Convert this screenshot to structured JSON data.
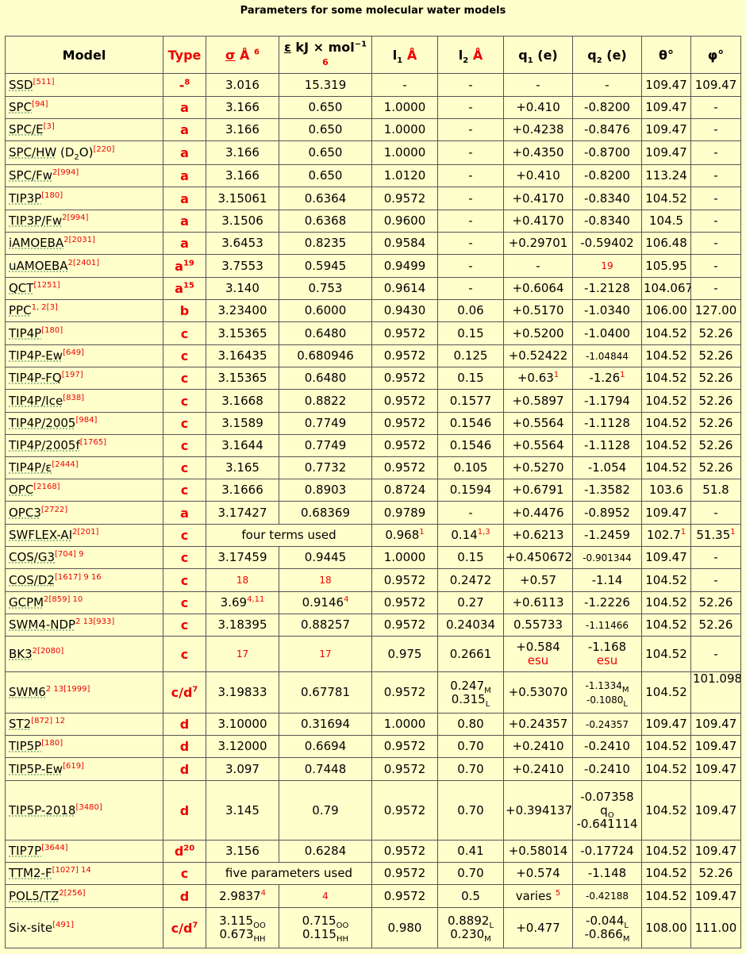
{
  "title": "Parameters for some molecular water models",
  "headers": {
    "model": "Model",
    "type": "Type",
    "sigma_sym": "σ",
    "sigma_unit": "Å",
    "sigma_ref": "6",
    "eps_sym": "ε",
    "eps_unit": "kJ × mol",
    "eps_exp": "−1",
    "eps_ref": "6",
    "l1": "l",
    "l1_sub": "1",
    "l1_unit": "Å",
    "l2": "l",
    "l2_sub": "2",
    "l2_unit": "Å",
    "q1": "q",
    "q1_sub": "1",
    "q1_unit": "(e)",
    "q2": "q",
    "q2_sub": "2",
    "q2_unit": "(e)",
    "theta": "θ°",
    "phi": "φ°"
  },
  "rows": [
    {
      "model": "SSD",
      "refs": "[511]",
      "type": "-",
      "type_ref": "8",
      "sigma": "3.016",
      "eps": "15.319",
      "l1": "-",
      "l2": "-",
      "q1": "-",
      "q2": "-",
      "theta": "109.47",
      "phi": "109.47"
    },
    {
      "model": "SPC",
      "refs": "[94]",
      "type": "a",
      "sigma": "3.166",
      "eps": "0.650",
      "l1": "1.0000",
      "l2": "-",
      "q1": "+0.410",
      "q2": "-0.8200",
      "theta": "109.47",
      "phi": "-"
    },
    {
      "model": "SPC/E",
      "refs": "[3]",
      "type": "a",
      "sigma": "3.166",
      "eps": "0.650",
      "l1": "1.0000",
      "l2": "-",
      "q1": "+0.4238",
      "q2": "-0.8476",
      "theta": "109.47",
      "phi": "-"
    },
    {
      "model": "SPC/HW",
      "suffix_pre": "(D",
      "suffix_sub": "2",
      "suffix_post": "O)",
      "refs": "[220]",
      "type": "a",
      "sigma": "3.166",
      "eps": "0.650",
      "l1": "1.0000",
      "l2": "-",
      "q1": "+0.4350",
      "q2": "-0.8700",
      "theta": "109.47",
      "phi": "-"
    },
    {
      "model": "SPC/Fw",
      "notes": "2",
      "refs": "[994]",
      "type": "a",
      "sigma": "3.166",
      "eps": "0.650",
      "l1": "1.0120",
      "l2": "-",
      "q1": "+0.410",
      "q2": "-0.8200",
      "theta": "113.24",
      "phi": "-"
    },
    {
      "model": "TIP3P",
      "refs": "[180]",
      "type": "a",
      "sigma": "3.15061",
      "eps": "0.6364",
      "l1": "0.9572",
      "l2": "-",
      "q1": "+0.4170",
      "q2": "-0.8340",
      "theta": "104.52",
      "phi": "-"
    },
    {
      "model": "TIP3P/Fw",
      "notes": "2",
      "refs": "[994]",
      "type": "a",
      "sigma": "3.1506",
      "eps": "0.6368",
      "l1": "0.9600",
      "l2": "-",
      "q1": "+0.4170",
      "q2": "-0.8340",
      "theta": "104.5",
      "phi": "-"
    },
    {
      "model": "iAMOEBA",
      "notes": "2",
      "refs": "[2031]",
      "type": "a",
      "sigma": "3.6453",
      "eps": "0.8235",
      "l1": "0.9584",
      "l2": "-",
      "q1": "+0.29701",
      "q2": "-0.59402",
      "theta": "106.48",
      "phi": "-"
    },
    {
      "model": "uAMOEBA",
      "notes": "2",
      "refs": "[2401]",
      "type": "a",
      "type_ref": "19",
      "sigma": "3.7553",
      "eps": "0.5945",
      "l1": "0.9499",
      "l2": "-",
      "q1": "-",
      "q2_ref": "19",
      "theta": "105.95",
      "phi": "-"
    },
    {
      "model": "QCT",
      "refs": "[1251]",
      "type": "a",
      "type_ref": "15",
      "sigma": "3.140",
      "eps": "0.753",
      "l1": "0.9614",
      "l2": "-",
      "q1": "+0.6064",
      "q2": "-1.2128",
      "theta": "104.067",
      "phi": "-"
    },
    {
      "model": "PPC",
      "notes": "1, 2",
      "refs": "[3]",
      "type": "b",
      "sigma": "3.23400",
      "eps": "0.6000",
      "l1": "0.9430",
      "l2": "0.06",
      "q1": "+0.5170",
      "q2": "-1.0340",
      "theta": "106.00",
      "phi": "127.00"
    },
    {
      "model": "TIP4P",
      "refs": "[180]",
      "type": "c",
      "sigma": "3.15365",
      "eps": "0.6480",
      "l1": "0.9572",
      "l2": "0.15",
      "q1": "+0.5200",
      "q2": "-1.0400",
      "theta": "104.52",
      "phi": "52.26"
    },
    {
      "model": "TIP4P-Ew",
      "refs": "[649]",
      "type": "c",
      "sigma": "3.16435",
      "eps": "0.680946",
      "l1": "0.9572",
      "l2": "0.125",
      "q1": "+0.52422",
      "q2": "-1.04844",
      "q2_small": true,
      "theta": "104.52",
      "phi": "52.26"
    },
    {
      "model": "TIP4P-FQ",
      "refs": "[197]",
      "type": "c",
      "sigma": "3.15365",
      "eps": "0.6480",
      "l1": "0.9572",
      "l2": "0.15",
      "q1": "+0.63",
      "q1_ref": "1",
      "q2": "-1.26",
      "q2_ref2": "1",
      "theta": "104.52",
      "phi": "52.26"
    },
    {
      "model": "TIP4P/Ice",
      "refs": "[838]",
      "type": "c",
      "sigma": "3.1668",
      "eps": "0.8822",
      "l1": "0.9572",
      "l2": "0.1577",
      "q1": "+0.5897",
      "q2": "-1.1794",
      "theta": "104.52",
      "phi": "52.26"
    },
    {
      "model": "TIP4P/2005",
      "refs": "[984]",
      "type": "c",
      "sigma": "3.1589",
      "eps": "0.7749",
      "l1": "0.9572",
      "l2": "0.1546",
      "q1": "+0.5564",
      "q2": "-1.1128",
      "theta": "104.52",
      "phi": "52.26"
    },
    {
      "model": "TIP4P/2005f",
      "refs": "[1765]",
      "type": "c",
      "sigma": "3.1644",
      "eps": "0.7749",
      "l1": "0.9572",
      "l2": "0.1546",
      "q1": "+0.5564",
      "q2": "-1.1128",
      "theta": "104.52",
      "phi": "52.26"
    },
    {
      "model": "TIP4P/ε",
      "refs": "[2444]",
      "type": "c",
      "sigma": "3.165",
      "eps": "0.7732",
      "l1": "0.9572",
      "l2": "0.105",
      "q1": "+0.5270",
      "q2": "-1.054",
      "theta": "104.52",
      "phi": "52.26"
    },
    {
      "model": "OPC",
      "refs": "[2168]",
      "type": "c",
      "sigma": "3.1666",
      "eps": "0.8903",
      "l1": "0.8724",
      "l2": "0.1594",
      "q1": "+0.6791",
      "q2": "-1.3582",
      "theta": "103.6",
      "phi": "51.8"
    },
    {
      "model": "OPC3",
      "refs": "[2722]",
      "type": "a",
      "sigma": "3.17427",
      "eps": "0.68369",
      "l1": "0.9789",
      "l2": "-",
      "q1": "+0.4476",
      "q2": "-0.8952",
      "theta": "109.47",
      "phi": "-"
    },
    {
      "model": "SWFLEX-AI",
      "notes": "2",
      "refs": "[201]",
      "type": "c",
      "span": "four terms used",
      "l1": "0.968",
      "l1_ref": "1",
      "l2": "0.14",
      "l2_ref": "1,3",
      "q1": "+0.6213",
      "q2": "-1.2459",
      "theta": "102.7",
      "theta_ref": "1",
      "phi": "51.35",
      "phi_ref": "1"
    },
    {
      "model": "COS/G3",
      "refs": "[704] 9",
      "type": "c",
      "sigma": "3.17459",
      "eps": "0.9445",
      "l1": "1.0000",
      "l2": "0.15",
      "q1": "+0.450672",
      "q2": "-0.901344",
      "q2_small": true,
      "theta": "109.47",
      "phi": "-"
    },
    {
      "model": "COS/D2",
      "refs": "[1617] 9 16",
      "type": "c",
      "sigma_ref": "18",
      "eps_ref": "18",
      "l1": "0.9572",
      "l2": "0.2472",
      "q1": "+0.57",
      "q2": "-1.14",
      "theta": "104.52",
      "phi": "-"
    },
    {
      "model": "GCPM",
      "notes": "2",
      "refs": "[859] 10",
      "type": "c",
      "sigma": "3.69",
      "sigma_sup": "4,11",
      "eps": "0.9146",
      "eps_sup": "4",
      "l1": "0.9572",
      "l2": "0.27",
      "q1": "+0.6113",
      "q2": "-1.2226",
      "theta": "104.52",
      "phi": "52.26"
    },
    {
      "model": "SWM4-NDP",
      "notes": "2 13",
      "refs": "[933]",
      "type": "c",
      "sigma": "3.18395",
      "eps": "0.88257",
      "l1": "0.9572",
      "l2": "0.24034",
      "q1": "0.55733",
      "q2": "-1.11466",
      "q2_small": true,
      "theta": "104.52",
      "phi": "52.26"
    },
    {
      "model": "BK3",
      "notes": "2",
      "refs": "[2080]",
      "type": "c",
      "sigma_ref": "17",
      "eps_ref": "17",
      "l1": "0.975",
      "l2": "0.2661",
      "q1": "+0.584",
      "q1_unit": "esu",
      "q2": "-1.168",
      "q2_unit": "esu",
      "theta": "104.52",
      "phi": "-"
    },
    {
      "model": "SWM6",
      "notes": "2 13",
      "refs": "[1999]",
      "type": "c/d",
      "type_ref": "7",
      "sigma": "3.19833",
      "eps": "0.67781",
      "l1": "0.9572",
      "l2a": "0.247",
      "l2a_sub": "M",
      "l2b": "0.315",
      "l2b_sub": "L",
      "q1": "+0.53070",
      "q2a": "-1.1334",
      "q2a_sub": "M",
      "q2b": "-0.1080",
      "q2b_sub": "L",
      "theta": "104.52",
      "phi": "101.098"
    },
    {
      "model": "ST2",
      "refs": "[872] 12",
      "type": "d",
      "sigma": "3.10000",
      "eps": "0.31694",
      "l1": "1.0000",
      "l2": "0.80",
      "q1": "+0.24357",
      "q2": "-0.24357",
      "q2_small": true,
      "theta": "109.47",
      "phi": "109.47"
    },
    {
      "model": "TIP5P",
      "refs": "[180]",
      "type": "d",
      "sigma": "3.12000",
      "eps": "0.6694",
      "l1": "0.9572",
      "l2": "0.70",
      "q1": "+0.2410",
      "q2": "-0.2410",
      "theta": "104.52",
      "phi": "109.47"
    },
    {
      "model": "TIP5P-Ew",
      "refs": "[619]",
      "type": "d",
      "sigma": "3.097",
      "eps": "0.7448",
      "l1": "0.9572",
      "l2": "0.70",
      "q1": "+0.2410",
      "q2": "-0.2410",
      "theta": "104.52",
      "phi": "109.47"
    },
    {
      "model": "TIP5P-2018",
      "refs": "[3480]",
      "type": "d",
      "sigma": "3.145",
      "eps": "0.79",
      "l1": "0.9572",
      "l2": "0.70",
      "q1": "+0.394137",
      "q2a": "-0.07358",
      "q2_mid": "q",
      "q2_mid_sub": "O",
      "q2b": "-0.641114",
      "theta": "104.52",
      "phi": "109.47"
    },
    {
      "model": "TIP7P",
      "refs": "[3644]",
      "type": "d",
      "type_ref": "20",
      "sigma": "3.156",
      "eps": "0.6284",
      "l1": "0.9572",
      "l2": "0.41",
      "q1": "+0.58014",
      "q2": "-0.17724",
      "theta": "104.52",
      "phi": "109.47"
    },
    {
      "model": "TTM2-F",
      "refs": "[1027] 14",
      "type": "c",
      "span": "five parameters used",
      "l1": "0.9572",
      "l2": "0.70",
      "q1": "+0.574",
      "q2": "-1.148",
      "theta": "104.52",
      "phi": "52.26"
    },
    {
      "model": "POL5/TZ",
      "notes": "2",
      "refs": "[256]",
      "type": "d",
      "sigma": "2.9837",
      "sigma_sup": "4",
      "eps_ref": "4",
      "l1": "0.9572",
      "l2": "0.5",
      "q1": "varies",
      "q1_sup": "5",
      "q2": "-0.42188",
      "q2_small": true,
      "theta": "104.52",
      "phi": "109.47"
    },
    {
      "model": "Six-site",
      "plain": true,
      "refs": "[491]",
      "type": "c/d",
      "type_ref": "7",
      "sigma_a": "3.115",
      "sigma_a_sub": "OO",
      "sigma_b": "0.673",
      "sigma_b_sub": "HH",
      "eps_a": "0.715",
      "eps_a_sub": "OO",
      "eps_b": "0.115",
      "eps_b_sub": "HH",
      "l1": "0.980",
      "l2a": "0.8892",
      "l2a_sub": "L",
      "l2b": "0.230",
      "l2b_sub": "M",
      "q1": "+0.477",
      "q2a": "-0.044",
      "q2a_sub": "L",
      "q2b": "-0.866",
      "q2b_sub": "M",
      "theta": "108.00",
      "phi": "111.00"
    }
  ]
}
